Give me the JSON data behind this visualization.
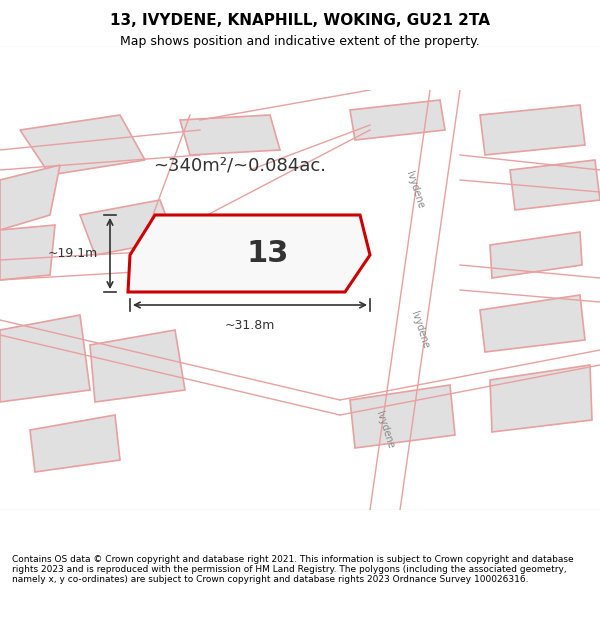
{
  "title": "13, IVYDENE, KNAPHILL, WOKING, GU21 2TA",
  "subtitle": "Map shows position and indicative extent of the property.",
  "copyright": "Contains OS data © Crown copyright and database right 2021. This information is subject to Crown copyright and database rights 2023 and is reproduced with the permission of HM Land Registry. The polygons (including the associated geometry, namely x, y co-ordinates) are subject to Crown copyright and database rights 2023 Ordnance Survey 100026316.",
  "map_bg": "#f5f5f5",
  "map_border": "#cccccc",
  "area_text": "~340m²/~0.084ac.",
  "plot_label": "13",
  "dim_width": "~31.8m",
  "dim_height": "~19.1m",
  "plot_color": "#cc0000",
  "plot_fill": "#f5f5f5",
  "building_fill": "#e0e0e0",
  "building_edge": "#e8a0a0",
  "road_line_color": "#e8a0a0",
  "road_label": "Ivydene",
  "road_label2": "Ivydene",
  "road_label3": "Ivydene"
}
